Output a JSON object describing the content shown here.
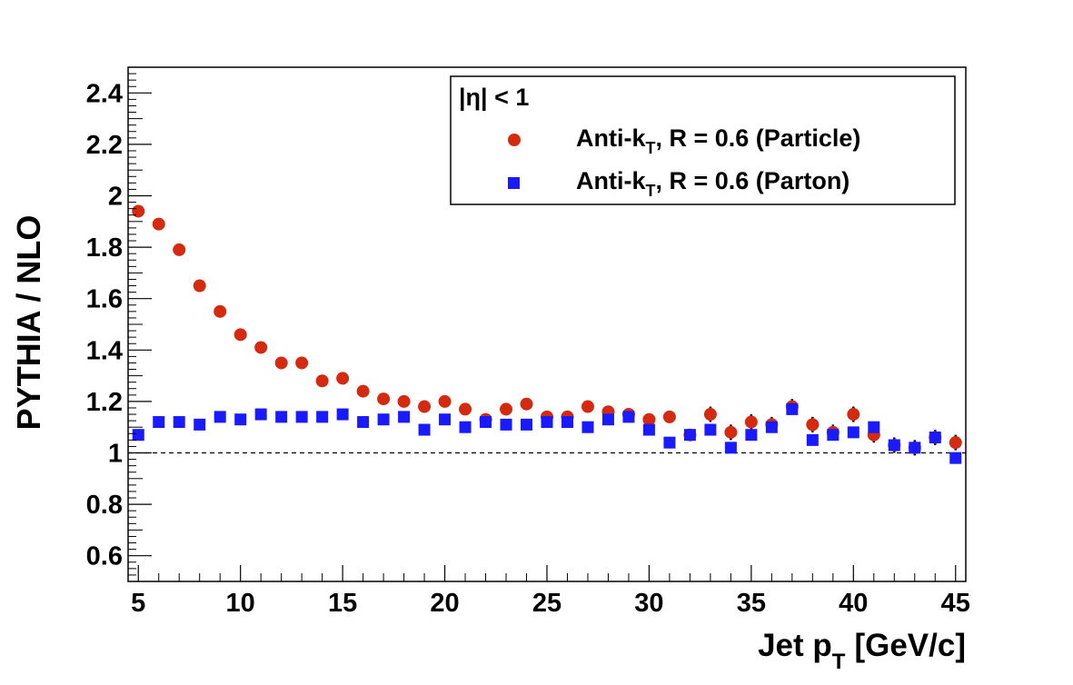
{
  "chart_data": {
    "type": "scatter",
    "title": "",
    "xlabel": "Jet p",
    "xlabel_sub": "T",
    "xlabel_unit": "[GeV/c]",
    "ylabel": "PYTHIA / NLO",
    "xlim": [
      4.5,
      45.5
    ],
    "ylim": [
      0.5,
      2.5
    ],
    "x_ticks": [
      5,
      10,
      15,
      20,
      25,
      30,
      35,
      40,
      45
    ],
    "y_ticks": [
      0.6,
      0.8,
      1,
      1.2,
      1.4,
      1.6,
      1.8,
      2,
      2.2,
      2.4
    ],
    "y_tick_labels": [
      "0.6",
      "0.8",
      "1",
      "1.2",
      "1.4",
      "1.6",
      "1.8",
      "2",
      "2.2",
      "2.4"
    ],
    "reference_line": 1,
    "grid": false,
    "legend": {
      "placement": "top-right",
      "header": "|η| < 1",
      "entries": [
        {
          "main": "Anti-k",
          "sub": "T",
          "rest": ", R = 0.6 (Particle)"
        },
        {
          "main": "Anti-k",
          "sub": "T",
          "rest": ", R = 0.6 (Parton)"
        }
      ]
    },
    "series": [
      {
        "marker": "circle",
        "color": "#d42a10",
        "x": [
          5,
          6,
          7,
          8,
          9,
          10,
          11,
          12,
          13,
          14,
          15,
          16,
          17,
          18,
          19,
          20,
          21,
          22,
          23,
          24,
          25,
          26,
          27,
          28,
          29,
          30,
          31,
          32,
          33,
          34,
          35,
          36,
          37,
          38,
          39,
          40,
          41,
          42,
          43,
          44,
          45
        ],
        "y": [
          1.94,
          1.89,
          1.79,
          1.65,
          1.55,
          1.46,
          1.41,
          1.35,
          1.35,
          1.28,
          1.29,
          1.24,
          1.21,
          1.2,
          1.18,
          1.2,
          1.17,
          1.13,
          1.17,
          1.19,
          1.14,
          1.14,
          1.18,
          1.16,
          1.15,
          1.13,
          1.14,
          1.07,
          1.15,
          1.08,
          1.12,
          1.11,
          1.18,
          1.11,
          1.08,
          1.15,
          1.07,
          1.03,
          1.02,
          1.06,
          1.04
        ],
        "err": [
          0,
          0,
          0,
          0,
          0,
          0,
          0,
          0,
          0,
          0,
          0,
          0,
          0,
          0,
          0,
          0,
          0,
          0,
          0,
          0,
          0,
          0,
          0.02,
          0.02,
          0.02,
          0.02,
          0.02,
          0.02,
          0.03,
          0.03,
          0.03,
          0.03,
          0.03,
          0.03,
          0.03,
          0.03,
          0.03,
          0.03,
          0.03,
          0.03,
          0.03
        ]
      },
      {
        "marker": "square",
        "color": "#1a1aff",
        "x": [
          5,
          6,
          7,
          8,
          9,
          10,
          11,
          12,
          13,
          14,
          15,
          16,
          17,
          18,
          19,
          20,
          21,
          22,
          23,
          24,
          25,
          26,
          27,
          28,
          29,
          30,
          31,
          32,
          33,
          34,
          35,
          36,
          37,
          38,
          39,
          40,
          41,
          42,
          43,
          44,
          45
        ],
        "y": [
          1.07,
          1.12,
          1.12,
          1.11,
          1.14,
          1.13,
          1.15,
          1.14,
          1.14,
          1.14,
          1.15,
          1.12,
          1.13,
          1.14,
          1.09,
          1.13,
          1.1,
          1.12,
          1.11,
          1.11,
          1.12,
          1.12,
          1.1,
          1.13,
          1.14,
          1.09,
          1.04,
          1.07,
          1.09,
          1.02,
          1.07,
          1.1,
          1.17,
          1.05,
          1.07,
          1.08,
          1.1,
          1.03,
          1.02,
          1.06,
          0.98
        ]
      }
    ]
  }
}
